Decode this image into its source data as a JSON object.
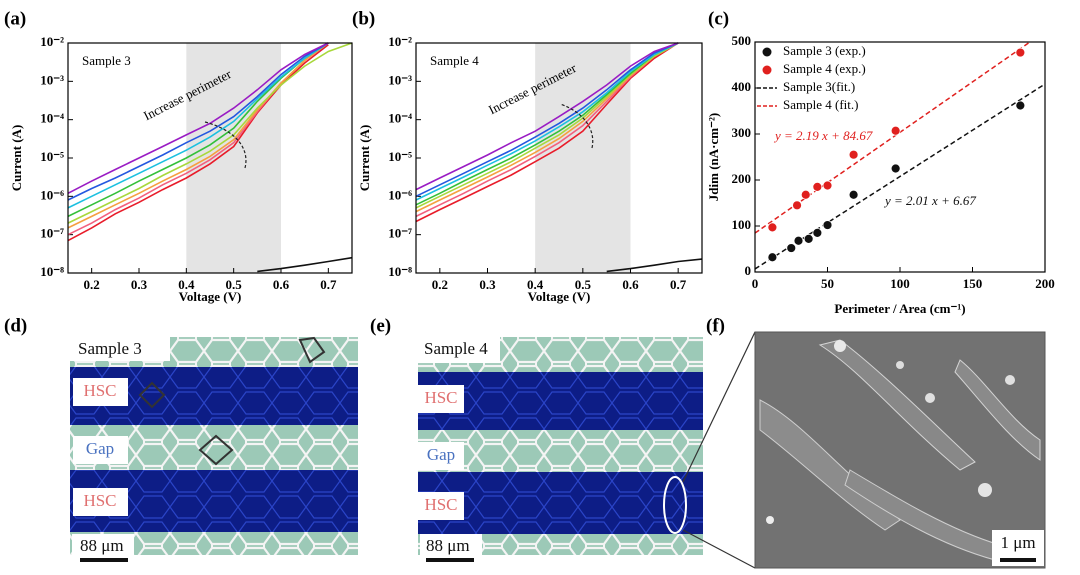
{
  "chart_data": [
    {
      "type": "line",
      "panel_label": "(a)",
      "x_label": "Voltage (V)",
      "y_label": "Current (A)",
      "log_y": true,
      "xlim": [
        0.15,
        0.75
      ],
      "xticks": [
        0.2,
        0.3,
        0.4,
        0.5,
        0.6,
        0.7
      ],
      "ylim": [
        1e-08,
        0.01
      ],
      "yticks": [
        {
          "value": 1e-08,
          "label": "10⁻⁸"
        },
        {
          "value": 1e-07,
          "label": "10⁻⁷"
        },
        {
          "value": 1e-06,
          "label": "10⁻⁶"
        },
        {
          "value": 1e-05,
          "label": "10⁻⁵"
        },
        {
          "value": 0.0001,
          "label": "10⁻⁴"
        },
        {
          "value": 0.001,
          "label": "10⁻³"
        },
        {
          "value": 0.01,
          "label": "10⁻²"
        }
      ],
      "shade": [
        0.4,
        0.6
      ],
      "annotations": [
        {
          "text": "Sample 3"
        },
        {
          "text": "Increase perimeter"
        }
      ],
      "x": [
        0.15,
        0.2,
        0.25,
        0.3,
        0.35,
        0.4,
        0.45,
        0.5,
        0.55,
        0.6,
        0.65,
        0.7,
        0.75
      ],
      "series": [
        {
          "color": "#e81c2a",
          "values": [
            7e-08,
            1.5e-07,
            3.5e-07,
            7e-07,
            1.5e-06,
            3e-06,
            7e-06,
            2e-05,
            0.00015,
            0.0008,
            0.003,
            0.009,
            null
          ]
        },
        {
          "color": "#f2607e",
          "values": [
            1e-07,
            2e-07,
            4.5e-07,
            9e-07,
            2e-06,
            4e-06,
            9e-06,
            2.5e-05,
            0.00016,
            0.0009,
            0.0035,
            0.01,
            null
          ]
        },
        {
          "color": "#f5a040",
          "values": [
            1.5e-07,
            3e-07,
            6e-07,
            1.2e-06,
            2.5e-06,
            5e-06,
            1.1e-05,
            3e-05,
            0.00018,
            0.0009,
            0.0035,
            0.01,
            null
          ]
        },
        {
          "color": "#a8d83c",
          "values": [
            2e-07,
            4e-07,
            8e-07,
            1.6e-06,
            3.5e-06,
            7e-06,
            1.5e-05,
            4e-05,
            0.0002,
            0.0008,
            0.0025,
            0.006,
            0.01
          ]
        },
        {
          "color": "#34c03a",
          "values": [
            3e-07,
            6e-07,
            1.2e-06,
            2.5e-06,
            5e-06,
            1e-05,
            2.2e-05,
            6e-05,
            0.0003,
            0.0012,
            0.004,
            0.01,
            null
          ]
        },
        {
          "color": "#1cc0e0",
          "values": [
            5e-07,
            1e-06,
            2e-06,
            4e-06,
            8e-06,
            1.6e-05,
            3.5e-05,
            9e-05,
            0.00035,
            0.0013,
            0.004,
            0.01,
            null
          ]
        },
        {
          "color": "#2458e0",
          "values": [
            8e-07,
            1.6e-06,
            3e-06,
            6e-06,
            1.2e-05,
            2.5e-05,
            5e-05,
            0.00012,
            0.0004,
            0.0015,
            0.0045,
            0.01,
            null
          ]
        },
        {
          "color": "#9a1cc4",
          "values": [
            1.2e-06,
            2.5e-06,
            5e-06,
            1e-05,
            2e-05,
            4e-05,
            8e-05,
            0.0002,
            0.0006,
            0.002,
            0.005,
            0.01,
            null
          ]
        },
        {
          "color": "#111111",
          "values": [
            null,
            null,
            null,
            null,
            null,
            null,
            null,
            null,
            1.1e-08,
            1.3e-08,
            1.6e-08,
            2e-08,
            2.5e-08
          ]
        }
      ]
    },
    {
      "type": "line",
      "panel_label": "(b)",
      "x_label": "Voltage (V)",
      "y_label": "Current (A)",
      "log_y": true,
      "xlim": [
        0.15,
        0.75
      ],
      "xticks": [
        0.2,
        0.3,
        0.4,
        0.5,
        0.6,
        0.7
      ],
      "ylim": [
        1e-08,
        0.01
      ],
      "yticks": [
        {
          "value": 1e-08,
          "label": "10⁻⁸"
        },
        {
          "value": 1e-07,
          "label": "10⁻⁷"
        },
        {
          "value": 1e-06,
          "label": "10⁻⁶"
        },
        {
          "value": 1e-05,
          "label": "10⁻⁵"
        },
        {
          "value": 0.0001,
          "label": "10⁻⁴"
        },
        {
          "value": 0.001,
          "label": "10⁻³"
        },
        {
          "value": 0.01,
          "label": "10⁻²"
        }
      ],
      "shade": [
        0.4,
        0.6
      ],
      "annotations": [
        {
          "text": "Sample 4"
        },
        {
          "text": "Increase perimeter"
        }
      ],
      "x": [
        0.15,
        0.2,
        0.25,
        0.3,
        0.35,
        0.4,
        0.45,
        0.5,
        0.55,
        0.6,
        0.65,
        0.7,
        0.75
      ],
      "series": [
        {
          "color": "#e81c2a",
          "values": [
            2.2e-07,
            4.5e-07,
            9e-07,
            1.8e-06,
            3.6e-06,
            8e-06,
            1.8e-05,
            5e-05,
            0.00025,
            0.0012,
            0.004,
            0.01,
            null
          ]
        },
        {
          "color": "#f2607e",
          "values": [
            3e-07,
            6e-07,
            1.2e-06,
            2.5e-06,
            5e-06,
            1.1e-05,
            2.5e-05,
            7e-05,
            0.0003,
            0.0013,
            0.0045,
            0.01,
            null
          ]
        },
        {
          "color": "#f5a040",
          "values": [
            4e-07,
            8e-07,
            1.6e-06,
            3.2e-06,
            6.5e-06,
            1.4e-05,
            3.2e-05,
            9e-05,
            0.00035,
            0.0014,
            0.0045,
            0.01,
            null
          ]
        },
        {
          "color": "#a8d83c",
          "values": [
            5e-07,
            1e-06,
            2e-06,
            4e-06,
            8e-06,
            1.8e-05,
            4e-05,
            0.00011,
            0.0004,
            0.0015,
            0.0045,
            0.01,
            null
          ]
        },
        {
          "color": "#34c03a",
          "values": [
            6e-07,
            1.2e-06,
            2.5e-06,
            5e-06,
            1e-05,
            2.2e-05,
            5e-05,
            0.00013,
            0.00045,
            0.0016,
            0.005,
            0.01,
            null
          ]
        },
        {
          "color": "#1cc0e0",
          "values": [
            8e-07,
            1.6e-06,
            3.2e-06,
            6.5e-06,
            1.3e-05,
            2.8e-05,
            6.5e-05,
            0.00016,
            0.0005,
            0.0018,
            0.005,
            0.01,
            null
          ]
        },
        {
          "color": "#2458e0",
          "values": [
            1e-06,
            2e-06,
            4e-06,
            8e-06,
            1.6e-05,
            3.5e-05,
            8e-05,
            0.0002,
            0.0006,
            0.002,
            0.0055,
            0.01,
            null
          ]
        },
        {
          "color": "#9a1cc4",
          "values": [
            1.5e-06,
            3e-06,
            6e-06,
            1.2e-05,
            2.5e-05,
            5e-05,
            0.00012,
            0.0003,
            0.0008,
            0.0025,
            0.006,
            0.01,
            null
          ]
        },
        {
          "color": "#111111",
          "values": [
            null,
            null,
            null,
            null,
            null,
            null,
            null,
            null,
            1.1e-08,
            1.3e-08,
            1.6e-08,
            2e-08,
            2.3e-08
          ]
        }
      ]
    },
    {
      "type": "scatter",
      "panel_label": "(c)",
      "x_label": "Perimeter / Area (cm⁻¹)",
      "y_label": "Jdim (nA·cm⁻²)",
      "xlim": [
        0,
        200
      ],
      "xticks": [
        0,
        50,
        100,
        150,
        200
      ],
      "ylim": [
        0,
        500
      ],
      "yticks": [
        0,
        100,
        200,
        300,
        400,
        500
      ],
      "legend": "upper left",
      "series": [
        {
          "name": "Sample 3 (exp.)",
          "color": "#111111",
          "x": [
            12,
            25,
            30,
            37,
            43,
            50,
            68,
            97,
            183
          ],
          "values": [
            32,
            52,
            68,
            72,
            85,
            102,
            168,
            225,
            362
          ]
        },
        {
          "name": "Sample 4 (exp.)",
          "color": "#e0201e",
          "x": [
            12,
            29,
            35,
            43,
            50,
            68,
            97,
            183
          ],
          "values": [
            97,
            145,
            168,
            185,
            188,
            255,
            307,
            477
          ]
        }
      ],
      "fits": [
        {
          "name": "Sample 3(fit.)",
          "color": "#111111",
          "slope": 2.01,
          "intercept": 6.67,
          "label": "y = 2.01 x + 6.67"
        },
        {
          "name": "Sample 4 (fit.)",
          "color": "#e0201e",
          "slope": 2.19,
          "intercept": 84.67,
          "label": "y = 2.19 x + 84.67"
        }
      ]
    }
  ],
  "images": [
    {
      "panel_label": "(d)",
      "sample": "Sample 3",
      "labels": [
        "HSC",
        "Gap",
        "HSC"
      ],
      "scale_bar": "88 μm"
    },
    {
      "panel_label": "(e)",
      "sample": "Sample 4",
      "labels": [
        "HSC",
        "Gap",
        "HSC"
      ],
      "scale_bar": "88 μm"
    },
    {
      "panel_label": "(f)",
      "scale_bar": "1 μm"
    }
  ]
}
